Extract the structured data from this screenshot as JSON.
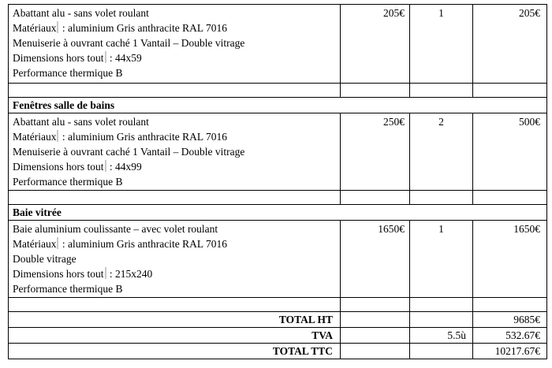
{
  "rows": {
    "item1": {
      "lines": [
        "Abattant alu - sans volet roulant",
        "Matériaux",
        " : aluminium Gris anthracite RAL 7016",
        "Menuiserie à ouvrant caché 1 Vantail – Double vitrage",
        "Dimensions hors tout",
        " : 44x59",
        "Performance thermique B"
      ],
      "price": "205€",
      "qty": "1",
      "total": "205€"
    },
    "section2": "Fenêtres salle de bains",
    "item2": {
      "lines": [
        "Abattant alu - sans volet roulant",
        "Matériaux",
        " : aluminium Gris anthracite RAL 7016",
        "Menuiserie à ouvrant caché  1 Vantail – Double vitrage",
        "Dimensions hors tout",
        " : 44x99",
        "Performance thermique B"
      ],
      "price": "250€",
      "qty": "2",
      "total": "500€"
    },
    "section3": "Baie vitrée",
    "item3": {
      "lines": [
        "Baie aluminium coulissante – avec volet roulant",
        "Matériaux",
        " : aluminium Gris anthracite RAL 7016",
        "Double vitrage",
        "Dimensions hors tout",
        " : 215x240",
        "Performance thermique B"
      ],
      "price": "1650€",
      "qty": "1",
      "total": "1650€"
    }
  },
  "totals": {
    "ht_label": "TOTAL HT",
    "ht_value": "9685€",
    "tva_label": "TVA",
    "tva_rate": "5.5ù",
    "tva_value": "532.67€",
    "ttc_label": "TOTAL TTC",
    "ttc_value": "10217.67€"
  }
}
